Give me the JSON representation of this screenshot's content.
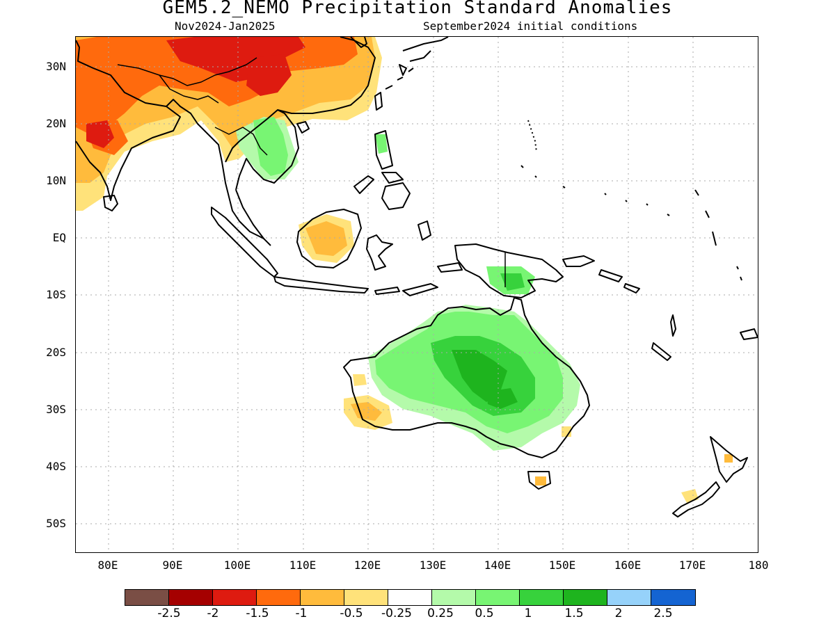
{
  "header": {
    "title": "GEM5.2_NEMO Precipitation Standard Anomalies",
    "period": "Nov2024-Jan2025",
    "init": "September2024 initial conditions"
  },
  "axes": {
    "lat_labels": [
      "30N",
      "20N",
      "10N",
      "EQ",
      "10S",
      "20S",
      "30S",
      "40S",
      "50S"
    ],
    "lon_labels": [
      "80E",
      "90E",
      "100E",
      "110E",
      "120E",
      "130E",
      "140E",
      "150E",
      "160E",
      "170E",
      "180"
    ],
    "lat_range": [
      -55,
      35
    ],
    "lon_range": [
      75,
      180
    ],
    "grid": "dotted"
  },
  "legend": {
    "labels": [
      "-2.5",
      "-2",
      "-1.5",
      "-1",
      "-0.5",
      "-0.25",
      "0.25",
      "0.5",
      "1",
      "1.5",
      "2",
      "2.5"
    ],
    "colors": [
      "#7a4e45",
      "#a50000",
      "#de1b10",
      "#ff6a0d",
      "#ffbb3c",
      "#ffe27a",
      "#ffffff",
      "#b4faaa",
      "#78f573",
      "#37d23c",
      "#1eb41e",
      "#96d2fa",
      "#1464d2"
    ]
  },
  "map": {
    "regions": [
      {
        "name": "Tibetan Plateau / South China",
        "anomaly": "-1 to -2",
        "color": "#de1b10"
      },
      {
        "name": "India",
        "anomaly": "-0.5 to -1.5",
        "color": "#ff6a0d"
      },
      {
        "name": "Indochina",
        "anomaly": "0.5 to 1",
        "color": "#78f573"
      },
      {
        "name": "Borneo",
        "anomaly": "-0.5",
        "color": "#ffbb3c"
      },
      {
        "name": "Central Australia",
        "anomaly": "0.5 to 1.5",
        "color": "#37d23c"
      },
      {
        "name": "Southwest Australia",
        "anomaly": "-0.25 to -0.5",
        "color": "#ffe27a"
      },
      {
        "name": "New Guinea",
        "anomaly": "0.5 to 1",
        "color": "#78f573"
      }
    ]
  }
}
